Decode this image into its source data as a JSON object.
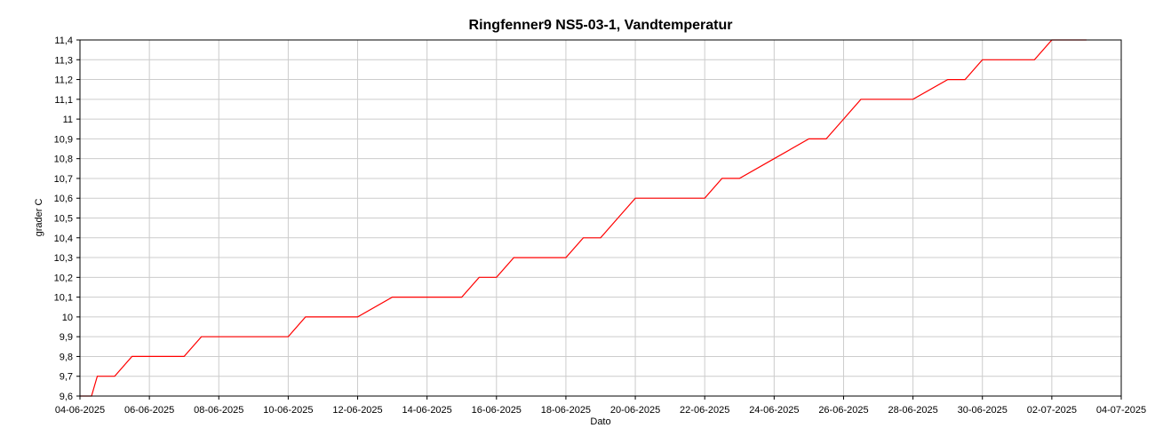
{
  "chart_data": {
    "type": "line",
    "title": "Ringfenner9 NS5-03-1, Vandtemperatur",
    "xlabel": "Dato",
    "ylabel": "grader C",
    "xlim": [
      "2025-06-04",
      "2025-07-04"
    ],
    "ylim": [
      9.6,
      11.4
    ],
    "x_ticks": [
      "04-06-2025",
      "06-06-2025",
      "08-06-2025",
      "10-06-2025",
      "12-06-2025",
      "14-06-2025",
      "16-06-2025",
      "18-06-2025",
      "20-06-2025",
      "22-06-2025",
      "24-06-2025",
      "26-06-2025",
      "28-06-2025",
      "30-06-2025",
      "02-07-2025",
      "04-07-2025"
    ],
    "y_ticks": [
      "9,6",
      "9,7",
      "9,8",
      "9,9",
      "10",
      "10,1",
      "10,2",
      "10,3",
      "10,4",
      "10,5",
      "10,6",
      "10,7",
      "10,8",
      "10,9",
      "11",
      "11,1",
      "11,2",
      "11,3",
      "11,4"
    ],
    "grid": true,
    "line_color": "#ff0000",
    "series": [
      {
        "x": [
          "2025-06-04 00:00",
          "2025-06-04 08:00",
          "2025-06-04 12:00",
          "2025-06-05 00:00",
          "2025-06-05 12:00",
          "2025-06-06 00:00",
          "2025-06-07 00:00",
          "2025-06-07 12:00",
          "2025-06-08 00:00",
          "2025-06-09 00:00",
          "2025-06-10 00:00",
          "2025-06-10 12:00",
          "2025-06-11 00:00",
          "2025-06-12 00:00",
          "2025-06-13 00:00",
          "2025-06-14 00:00",
          "2025-06-15 00:00",
          "2025-06-15 12:00",
          "2025-06-16 00:00",
          "2025-06-16 12:00",
          "2025-06-17 00:00",
          "2025-06-18 00:00",
          "2025-06-18 12:00",
          "2025-06-19 00:00",
          "2025-06-19 12:00",
          "2025-06-20 00:00",
          "2025-06-21 00:00",
          "2025-06-22 00:00",
          "2025-06-22 12:00",
          "2025-06-23 00:00",
          "2025-06-24 00:00",
          "2025-06-25 00:00",
          "2025-06-25 12:00",
          "2025-06-26 00:00",
          "2025-06-26 12:00",
          "2025-06-27 00:00",
          "2025-06-28 00:00",
          "2025-06-29 00:00",
          "2025-06-29 12:00",
          "2025-06-30 00:00",
          "2025-07-01 00:00",
          "2025-07-01 12:00",
          "2025-07-02 00:00",
          "2025-07-03 00:00"
        ],
        "values": [
          9.6,
          9.6,
          9.7,
          9.7,
          9.8,
          9.8,
          9.8,
          9.9,
          9.9,
          9.9,
          9.9,
          10.0,
          10.0,
          10.0,
          10.1,
          10.1,
          10.1,
          10.2,
          10.2,
          10.3,
          10.3,
          10.3,
          10.4,
          10.4,
          10.5,
          10.6,
          10.6,
          10.6,
          10.7,
          10.7,
          10.8,
          10.9,
          10.9,
          11.0,
          11.1,
          11.1,
          11.1,
          11.2,
          11.2,
          11.3,
          11.3,
          11.3,
          11.4,
          11.4
        ]
      }
    ]
  }
}
